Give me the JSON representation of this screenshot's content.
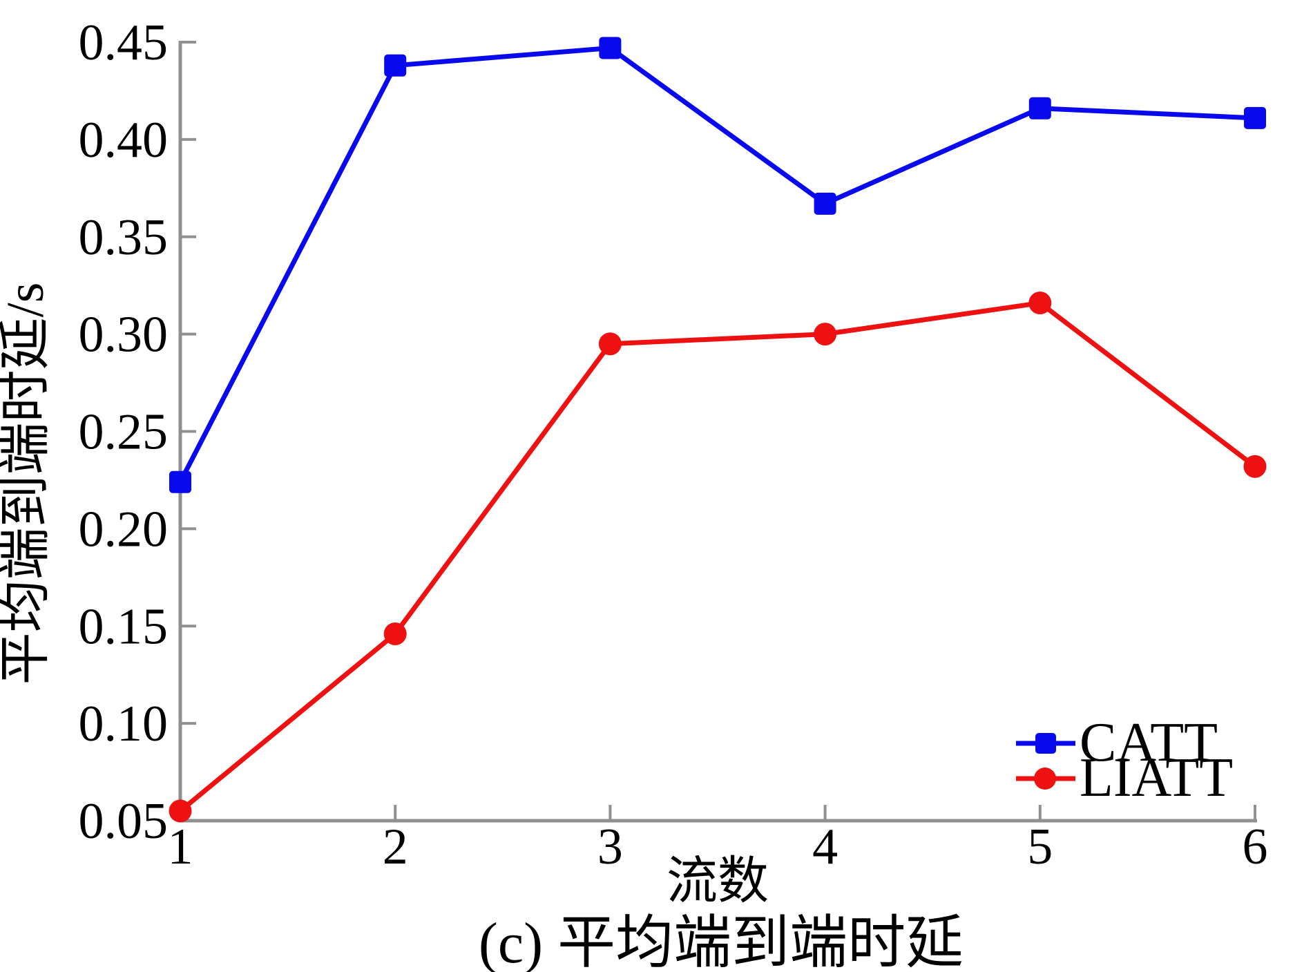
{
  "chart_data": {
    "type": "line",
    "title": "",
    "caption": "(c) 平均端到端时延",
    "xlabel": "流数",
    "ylabel": "平均端到端时延/s",
    "x": [
      1,
      2,
      3,
      4,
      5,
      6
    ],
    "xlim": [
      1,
      6
    ],
    "ylim": [
      0.05,
      0.45
    ],
    "xticks": [
      1,
      2,
      3,
      4,
      5,
      6
    ],
    "xtick_labels": [
      "1",
      "2",
      "3",
      "4",
      "5",
      "6"
    ],
    "yticks": [
      0.05,
      0.1,
      0.15,
      0.2,
      0.25,
      0.3,
      0.35,
      0.4,
      0.45
    ],
    "ytick_labels": [
      "0.05",
      "0.10",
      "0.15",
      "0.20",
      "0.25",
      "0.30",
      "0.35",
      "0.40",
      "0.45"
    ],
    "grid": false,
    "legend_position": "lower right",
    "series": [
      {
        "name": "CATT",
        "color": "#0909ee",
        "marker": "square",
        "values": [
          0.224,
          0.438,
          0.447,
          0.367,
          0.416,
          0.411
        ]
      },
      {
        "name": "LIATT",
        "color": "#ee1111",
        "marker": "circle",
        "values": [
          0.055,
          0.146,
          0.295,
          0.3,
          0.316,
          0.232
        ]
      }
    ]
  },
  "colors": {
    "axis": "#909090",
    "text": "#000000",
    "background": "#ffffff"
  }
}
